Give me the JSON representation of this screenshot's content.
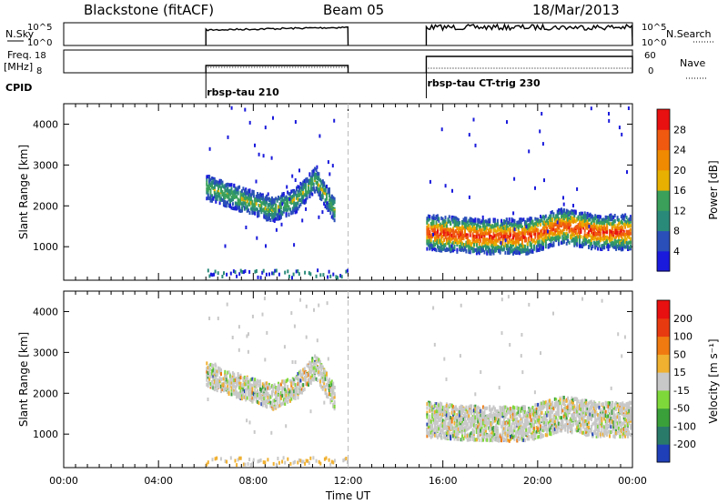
{
  "header": {
    "station": "Blackstone (fitACF)",
    "beam": "Beam 05",
    "date": "18/Mar/2013"
  },
  "panels": {
    "nsky_label": "N.Sky",
    "nsearch_label": "N.Search",
    "nsky_ticks": [
      "10^5",
      "10^0"
    ],
    "nsearch_ticks": [
      "10^5",
      "10^0"
    ],
    "freq_label": "Freq.",
    "freq_unit": "[MHz]",
    "freq_ticks": [
      "18",
      "8"
    ],
    "nave_label": "Nave",
    "nave_ticks": [
      "60",
      "0"
    ],
    "cpid_label": "CPID",
    "cpid_segments": [
      "rbsp-tau 210",
      "rbsp-tau CT-trig 230"
    ]
  },
  "colorbars": {
    "power": {
      "label": "Power [dB]",
      "ticks": [
        "28",
        "24",
        "20",
        "16",
        "12",
        "8",
        "4"
      ],
      "colors": [
        "#1a1adc",
        "#2a4fb8",
        "#2a8a7a",
        "#3aa05a",
        "#e8b000",
        "#f08a00",
        "#f05a10",
        "#e81010"
      ]
    },
    "velocity": {
      "label": "Velocity [m s⁻¹]",
      "ticks": [
        "200",
        "100",
        "50",
        "15",
        "-15",
        "-50",
        "-100",
        "-200"
      ],
      "colors": [
        "#1f3fb8",
        "#2a7a6a",
        "#3aa03a",
        "#7fd83a",
        "#c8c8c8",
        "#f0b030",
        "#f07a10",
        "#e83a10",
        "#e81010"
      ]
    }
  },
  "chart_data": {
    "type": "heatmap",
    "xlabel": "Time UT",
    "x_ticks": [
      "00:00",
      "04:00",
      "08:00",
      "12:00",
      "16:00",
      "20:00",
      "00:00"
    ],
    "x_tick_hours": [
      0,
      4,
      8,
      12,
      16,
      20,
      24
    ],
    "xlim": [
      0,
      24
    ],
    "ylabel": "Slant Range [km]",
    "y_ticks": [
      "4000",
      "3000",
      "2000",
      "1000"
    ],
    "y_tick_values": [
      4000,
      3000,
      2000,
      1000
    ],
    "ylim": [
      180,
      4500
    ],
    "operating_intervals_hours": [
      [
        6.0,
        12.0
      ],
      [
        15.3,
        24.0
      ]
    ],
    "cpid_change_hours": [
      6.0,
      15.3
    ],
    "dashed_gap_line_hour": 12.0,
    "scatter_bands": [
      {
        "name": "early",
        "t_start": 6.0,
        "t_end": 11.4,
        "center_km": [
          [
            6.0,
            2450
          ],
          [
            7.5,
            2150
          ],
          [
            8.8,
            1900
          ],
          [
            9.8,
            2150
          ],
          [
            10.6,
            2650
          ],
          [
            11.4,
            1900
          ]
        ],
        "thickness_km": 450
      },
      {
        "name": "late",
        "t_start": 15.3,
        "t_end": 23.9,
        "center_km": [
          [
            15.3,
            1350
          ],
          [
            17.5,
            1250
          ],
          [
            19.5,
            1250
          ],
          [
            21.0,
            1500
          ],
          [
            22.5,
            1350
          ],
          [
            23.9,
            1350
          ]
        ],
        "thickness_km": 650
      }
    ]
  }
}
